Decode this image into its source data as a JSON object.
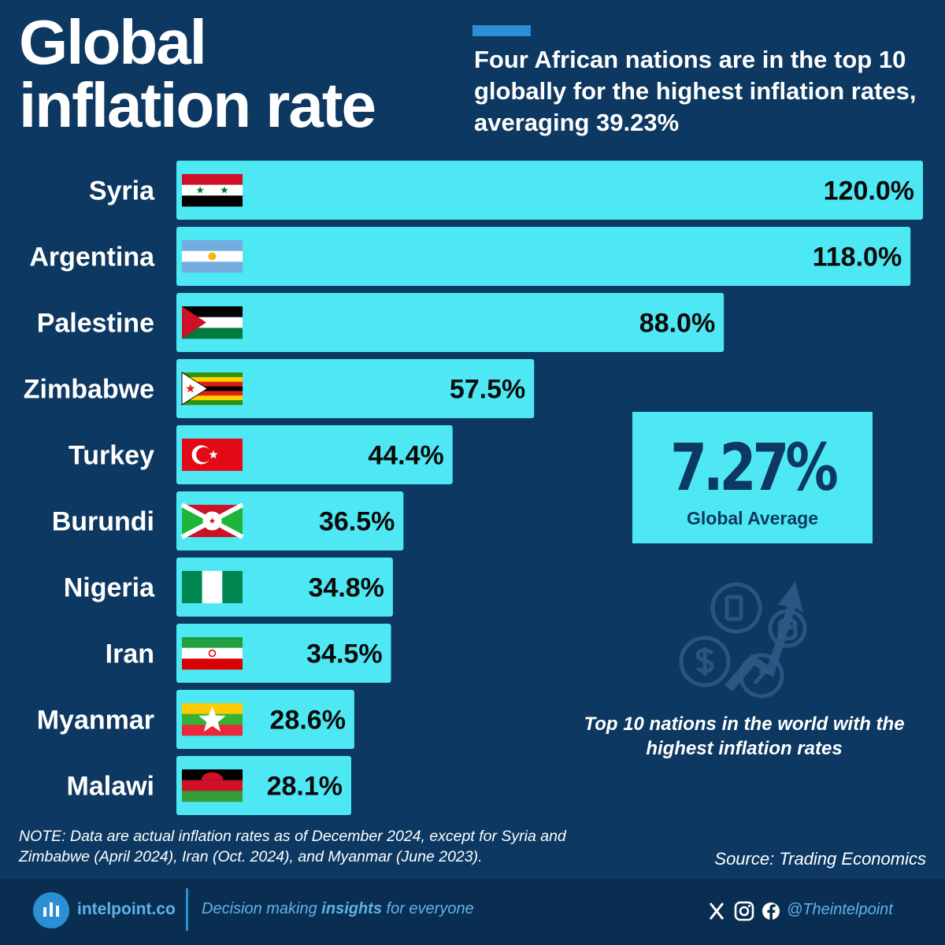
{
  "header": {
    "title_line1": "Global",
    "title_line2": "inflation rate",
    "subtitle": "Four African nations are in the top 10 globally for the highest inflation rates, averaging 39.23%"
  },
  "chart_data": {
    "type": "bar",
    "orientation": "horizontal",
    "categories": [
      "Syria",
      "Argentina",
      "Palestine",
      "Zimbabwe",
      "Turkey",
      "Burundi",
      "Nigeria",
      "Iran",
      "Myanmar",
      "Malawi"
    ],
    "values": [
      120.0,
      118.0,
      88.0,
      57.5,
      44.4,
      36.5,
      34.8,
      34.5,
      28.6,
      28.1
    ],
    "value_labels": [
      "120.0%",
      "118.0%",
      "88.0%",
      "57.5%",
      "44.4%",
      "36.5%",
      "34.8%",
      "34.5%",
      "28.6%",
      "28.1%"
    ],
    "xlim": [
      0,
      120
    ],
    "bar_color": "#4ee8f5",
    "label_color": "#0a0a0a"
  },
  "callout": {
    "value": "7.27%",
    "label": "Global Average"
  },
  "caption": "Top 10 nations in the world with the highest inflation rates",
  "note": "NOTE: Data are actual inflation rates as of December 2024, except for Syria and Zimbabwe (April 2024), Iran (Oct. 2024), and Myanmar (June 2023).",
  "source": "Source: Trading Economics",
  "footer": {
    "brand": "intelpoint.co",
    "tagline_pre": "Decision making ",
    "tagline_bold": "insights",
    "tagline_post": " for everyone",
    "handle": "@Theintelpoint"
  },
  "colors": {
    "background": "#0c3861",
    "accent": "#2a8fd4",
    "bar": "#4ee8f5",
    "footer": "#0a2e52"
  },
  "icons": [
    "x-icon",
    "instagram-icon",
    "facebook-icon",
    "inflation-illustration"
  ]
}
